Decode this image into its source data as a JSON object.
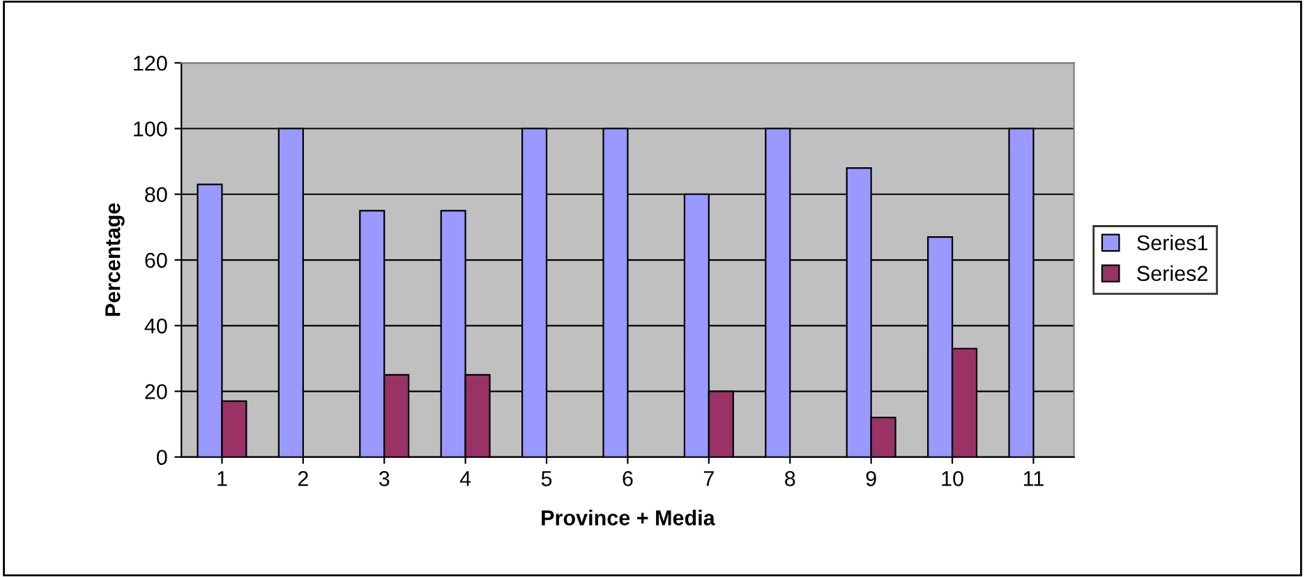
{
  "chart_data": {
    "type": "bar",
    "xlabel": "Province + Media",
    "ylabel": "Percentage",
    "categories": [
      "1",
      "2",
      "3",
      "4",
      "5",
      "6",
      "7",
      "8",
      "9",
      "10",
      "11"
    ],
    "series": [
      {
        "name": "Series1",
        "color": "#9999ff",
        "values": [
          83,
          100,
          75,
          75,
          100,
          100,
          80,
          100,
          88,
          67,
          100
        ]
      },
      {
        "name": "Series2",
        "color": "#993366",
        "values": [
          17,
          0,
          25,
          25,
          0,
          0,
          20,
          0,
          12,
          33,
          0
        ]
      }
    ],
    "ylim": [
      0,
      120
    ],
    "yticks": [
      0,
      20,
      40,
      60,
      80,
      100,
      120
    ],
    "grid": "y",
    "legend": "right"
  }
}
